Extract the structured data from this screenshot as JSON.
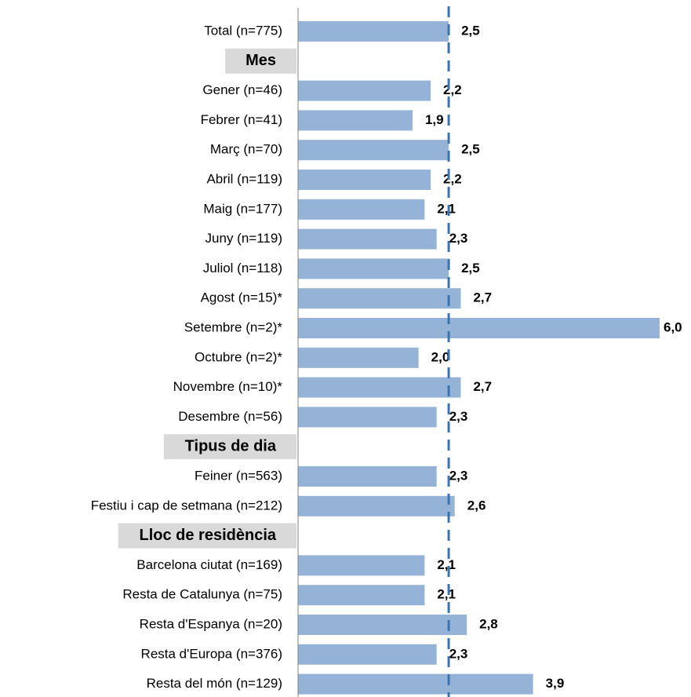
{
  "chart_data": {
    "type": "hbar",
    "categories": [
      "Total (n=775)",
      "Mes",
      "Gener (n=46)",
      "Febrer (n=41)",
      "Març (n=70)",
      "Abril (n=119)",
      "Maig (n=177)",
      "Juny (n=119)",
      "Juliol (n=118)",
      "Agost (n=15)*",
      "Setembre (n=2)*",
      "Octubre (n=2)*",
      "Novembre (n=10)*",
      "Desembre (n=56)",
      "Tipus de dia",
      "Feiner (n=563)",
      "Festiu i cap de setmana (n=212)",
      "Lloc de residència",
      "Barcelona ciutat (n=169)",
      "Resta de Catalunya (n=75)",
      "Resta d'Espanya (n=20)",
      "Resta d'Europa (n=376)",
      "Resta del món (n=129)"
    ],
    "values": [
      2.5,
      null,
      2.2,
      1.9,
      2.5,
      2.2,
      2.1,
      2.3,
      2.5,
      2.7,
      6.0,
      2.0,
      2.7,
      2.3,
      null,
      2.3,
      2.6,
      null,
      2.1,
      2.1,
      2.8,
      2.3,
      3.9
    ],
    "value_labels": [
      "2,5",
      null,
      "2,2",
      "1,9",
      "2,5",
      "2,2",
      "2,1",
      "2,3",
      "2,5",
      "2,7",
      "6,0",
      "2,0",
      "2,7",
      "2,3",
      null,
      "2,3",
      "2,6",
      null,
      "2,1",
      "2,1",
      "2,8",
      "2,3",
      "3,9"
    ],
    "color": "#95b3d7",
    "xlim": [
      0,
      6
    ],
    "reference_line": 2.5,
    "reference_color": "#3a73ad"
  }
}
